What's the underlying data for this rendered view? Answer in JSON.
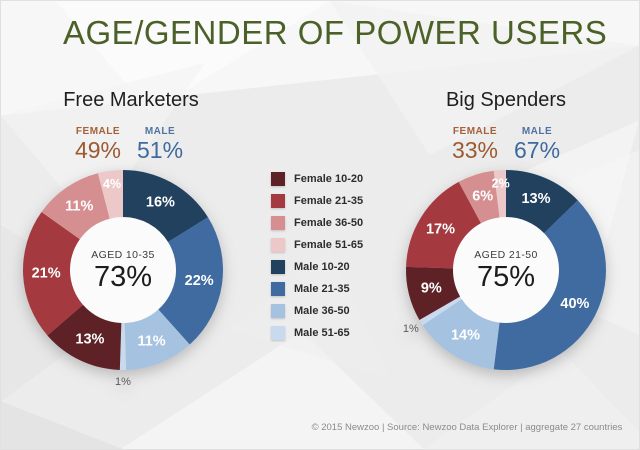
{
  "title": "AGE/GENDER OF POWER USERS",
  "footer": "© 2015 Newzoo | Source: Newzoo Data Explorer | aggregate 27 countries",
  "colors": {
    "title_green": "#4c6128",
    "female_accent": "#9c5a31",
    "male_accent": "#3f6a9e",
    "outside_label": "#5a5a5a",
    "background": "#ececec"
  },
  "legend": {
    "items": [
      {
        "label": "Female 10-20",
        "color": "#5e2126"
      },
      {
        "label": "Female 21-35",
        "color": "#a43a40"
      },
      {
        "label": "Female 36-50",
        "color": "#d58f91"
      },
      {
        "label": "Female 51-65",
        "color": "#ecc8c9"
      },
      {
        "label": "Male 10-20",
        "color": "#21415f"
      },
      {
        "label": "Male 21-35",
        "color": "#406ba1"
      },
      {
        "label": "Male 36-50",
        "color": "#a6c2e1"
      },
      {
        "label": "Male 51-65",
        "color": "#c9daee"
      }
    ]
  },
  "chart_data": [
    {
      "type": "pie",
      "title": "Free Marketers",
      "gender_summary": {
        "female_label": "FEMALE",
        "female_value": "49%",
        "male_label": "MALE",
        "male_value": "51%"
      },
      "center": {
        "label": "AGED 10-35",
        "value": "73%"
      },
      "slices": [
        {
          "category": "Male 10-20",
          "value": 16,
          "label": "16%"
        },
        {
          "category": "Male 21-35",
          "value": 22,
          "label": "22%"
        },
        {
          "category": "Male 36-50",
          "value": 11,
          "label": "11%"
        },
        {
          "category": "Male 51-65",
          "value": 1,
          "label": "1%",
          "label_pos": "outside"
        },
        {
          "category": "Female 10-20",
          "value": 13,
          "label": "13%"
        },
        {
          "category": "Female 21-35",
          "value": 21,
          "label": "21%"
        },
        {
          "category": "Female 36-50",
          "value": 11,
          "label": "11%"
        },
        {
          "category": "Female 51-65",
          "value": 4,
          "label": "4%"
        }
      ]
    },
    {
      "type": "pie",
      "title": "Big Spenders",
      "gender_summary": {
        "female_label": "FEMALE",
        "female_value": "33%",
        "male_label": "MALE",
        "male_value": "67%"
      },
      "center": {
        "label": "AGED 21-50",
        "value": "75%"
      },
      "slices": [
        {
          "category": "Male 10-20",
          "value": 13,
          "label": "13%"
        },
        {
          "category": "Male 21-35",
          "value": 40,
          "label": "40%"
        },
        {
          "category": "Male 36-50",
          "value": 14,
          "label": "14%"
        },
        {
          "category": "Male 51-65",
          "value": 1,
          "label": "1%",
          "label_pos": "outside"
        },
        {
          "category": "Female 10-20",
          "value": 9,
          "label": "9%"
        },
        {
          "category": "Female 21-35",
          "value": 17,
          "label": "17%"
        },
        {
          "category": "Female 36-50",
          "value": 6,
          "label": "6%"
        },
        {
          "category": "Female 51-65",
          "value": 2,
          "label": "2%"
        }
      ]
    }
  ]
}
